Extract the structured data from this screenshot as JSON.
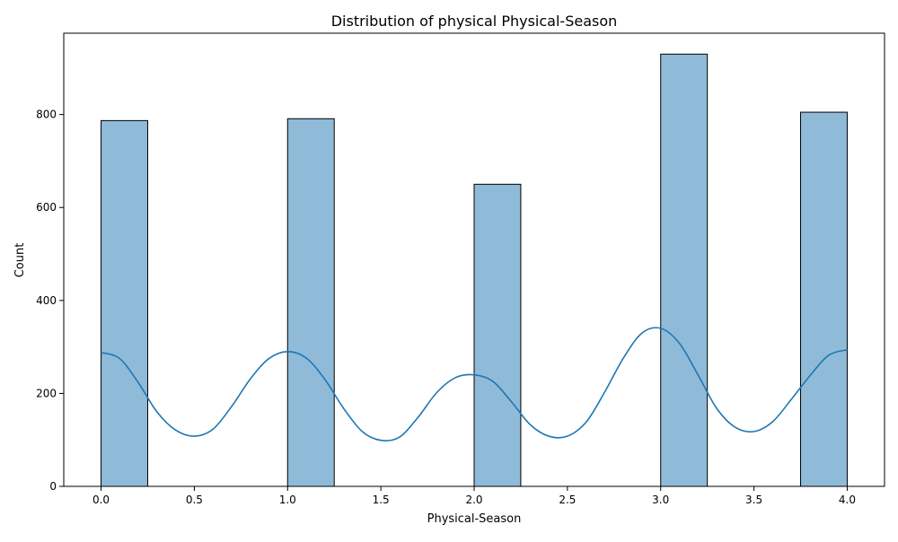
{
  "chart_data": {
    "type": "bar",
    "title": "Distribution of physical Physical-Season",
    "xlabel": "Physical-Season",
    "ylabel": "Count",
    "xlim": [
      -0.2,
      4.2
    ],
    "ylim": [
      0,
      975
    ],
    "x_ticks": [
      0.0,
      0.5,
      1.0,
      1.5,
      2.0,
      2.5,
      3.0,
      3.5,
      4.0
    ],
    "x_tick_labels": [
      "0.0",
      "0.5",
      "1.0",
      "1.5",
      "2.0",
      "2.5",
      "3.0",
      "3.5",
      "4.0"
    ],
    "y_ticks": [
      0,
      200,
      400,
      600,
      800
    ],
    "y_tick_labels": [
      "0",
      "200",
      "400",
      "600",
      "800"
    ],
    "grid": false,
    "bin_width": 0.25,
    "bins": [
      {
        "start": 0.0,
        "end": 0.25,
        "count": 787
      },
      {
        "start": 0.25,
        "end": 0.5,
        "count": 0
      },
      {
        "start": 0.5,
        "end": 0.75,
        "count": 0
      },
      {
        "start": 0.75,
        "end": 1.0,
        "count": 0
      },
      {
        "start": 1.0,
        "end": 1.25,
        "count": 791
      },
      {
        "start": 1.25,
        "end": 1.5,
        "count": 0
      },
      {
        "start": 1.5,
        "end": 1.75,
        "count": 0
      },
      {
        "start": 1.75,
        "end": 2.0,
        "count": 0
      },
      {
        "start": 2.0,
        "end": 2.25,
        "count": 650
      },
      {
        "start": 2.25,
        "end": 2.5,
        "count": 0
      },
      {
        "start": 2.5,
        "end": 2.75,
        "count": 0
      },
      {
        "start": 2.75,
        "end": 3.0,
        "count": 0
      },
      {
        "start": 3.0,
        "end": 3.25,
        "count": 930
      },
      {
        "start": 3.25,
        "end": 3.5,
        "count": 0
      },
      {
        "start": 3.5,
        "end": 3.75,
        "count": 0
      },
      {
        "start": 3.75,
        "end": 4.0,
        "count": 805
      }
    ],
    "kde": {
      "x": [
        0.0,
        0.1,
        0.2,
        0.3,
        0.4,
        0.5,
        0.6,
        0.7,
        0.8,
        0.9,
        1.0,
        1.1,
        1.2,
        1.3,
        1.4,
        1.5,
        1.6,
        1.7,
        1.8,
        1.9,
        2.0,
        2.1,
        2.2,
        2.3,
        2.4,
        2.5,
        2.6,
        2.7,
        2.8,
        2.9,
        3.0,
        3.1,
        3.2,
        3.3,
        3.4,
        3.5,
        3.6,
        3.7,
        3.8,
        3.9,
        4.0
      ],
      "y": [
        288,
        275,
        223,
        160,
        121,
        108,
        123,
        172,
        231,
        275,
        290,
        276,
        230,
        168,
        118,
        99,
        106,
        149,
        202,
        234,
        240,
        226,
        182,
        133,
        108,
        108,
        138,
        203,
        276,
        330,
        340,
        308,
        240,
        168,
        127,
        118,
        139,
        187,
        238,
        282,
        294
      ]
    },
    "colors": {
      "bar_fill": "#1f77b4",
      "bar_fill_opacity": 0.5,
      "bar_edge": "#000000",
      "kde_line": "#1f77b4"
    }
  }
}
